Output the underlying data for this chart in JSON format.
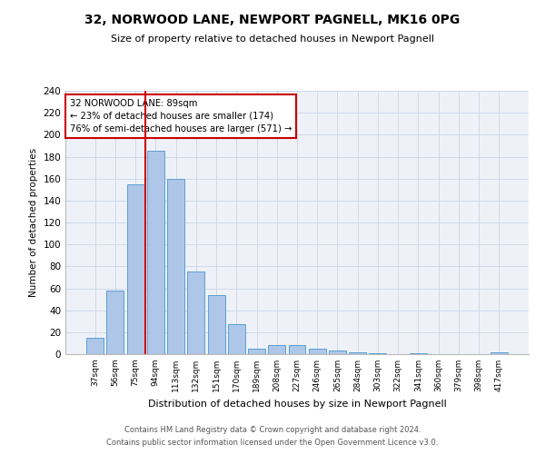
{
  "title": "32, NORWOOD LANE, NEWPORT PAGNELL, MK16 0PG",
  "subtitle": "Size of property relative to detached houses in Newport Pagnell",
  "xlabel": "Distribution of detached houses by size in Newport Pagnell",
  "ylabel": "Number of detached properties",
  "categories": [
    "37sqm",
    "56sqm",
    "75sqm",
    "94sqm",
    "113sqm",
    "132sqm",
    "151sqm",
    "170sqm",
    "189sqm",
    "208sqm",
    "227sqm",
    "246sqm",
    "265sqm",
    "284sqm",
    "303sqm",
    "322sqm",
    "341sqm",
    "360sqm",
    "379sqm",
    "398sqm",
    "417sqm"
  ],
  "values": [
    15,
    58,
    155,
    185,
    160,
    75,
    54,
    27,
    5,
    8,
    8,
    5,
    3,
    2,
    1,
    0,
    1,
    0,
    0,
    0,
    2
  ],
  "bar_color": "#aec6e8",
  "bar_edge_color": "#5a9fd4",
  "vline_color": "#cc0000",
  "annotation_line1": "32 NORWOOD LANE: 89sqm",
  "annotation_line2": "← 23% of detached houses are smaller (174)",
  "annotation_line3": "76% of semi-detached houses are larger (571) →",
  "annotation_box_color": "#cc0000",
  "ylim": [
    0,
    240
  ],
  "yticks": [
    0,
    20,
    40,
    60,
    80,
    100,
    120,
    140,
    160,
    180,
    200,
    220,
    240
  ],
  "grid_color": "#d0d8e8",
  "background_color": "#eef2f8",
  "footer_line1": "Contains HM Land Registry data © Crown copyright and database right 2024.",
  "footer_line2": "Contains public sector information licensed under the Open Government Licence v3.0."
}
